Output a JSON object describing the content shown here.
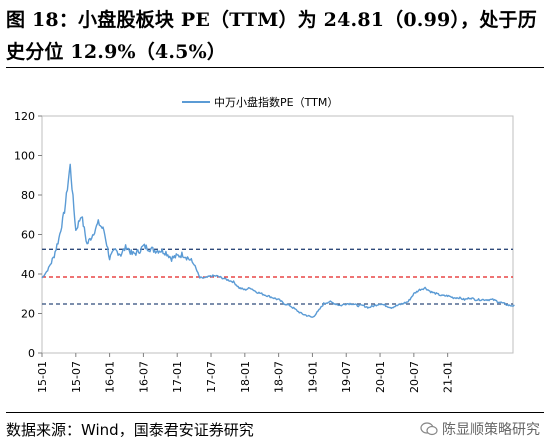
{
  "header": {
    "title": "图 18：小盘股板块 PE（TTM）为 24.81（0.99），处于历史分位 12.9%（4.5%）"
  },
  "footer": {
    "source": "数据来源：Wind，国泰君安证券研究",
    "watermark": "陈显顺策略研究"
  },
  "colors": {
    "series": "#5b9bd5",
    "mean_line": "#e32020",
    "band_lines": "#2f4a7a"
  },
  "chart_data": {
    "type": "line",
    "title": "",
    "xlabel": "",
    "ylabel": "",
    "ylim": [
      0,
      120
    ],
    "yticks": [
      0,
      20,
      40,
      60,
      80,
      100,
      120
    ],
    "x_range": [
      "2015-01",
      "2021-12"
    ],
    "xtick_labels": [
      "15-01",
      "15-07",
      "16-01",
      "16-07",
      "17-01",
      "17-07",
      "18-01",
      "18-07",
      "19-01",
      "19-07",
      "20-01",
      "20-07",
      "21-01"
    ],
    "legend": {
      "position": "top-center"
    },
    "grid": false,
    "series": [
      {
        "name": "中万小盘指数PE（TTM）",
        "x": [
          "2015-01",
          "2015-02",
          "2015-03",
          "2015-04",
          "2015-05",
          "2015-06",
          "2015-07",
          "2015-08",
          "2015-09",
          "2015-10",
          "2015-11",
          "2015-12",
          "2016-01",
          "2016-02",
          "2016-03",
          "2016-04",
          "2016-05",
          "2016-06",
          "2016-07",
          "2016-08",
          "2016-09",
          "2016-10",
          "2016-11",
          "2016-12",
          "2017-01",
          "2017-02",
          "2017-03",
          "2017-04",
          "2017-05",
          "2017-06",
          "2017-07",
          "2017-08",
          "2017-09",
          "2017-10",
          "2017-11",
          "2017-12",
          "2018-01",
          "2018-02",
          "2018-03",
          "2018-04",
          "2018-05",
          "2018-06",
          "2018-07",
          "2018-08",
          "2018-09",
          "2018-10",
          "2018-11",
          "2018-12",
          "2019-01",
          "2019-02",
          "2019-03",
          "2019-04",
          "2019-05",
          "2019-06",
          "2019-07",
          "2019-08",
          "2019-09",
          "2019-10",
          "2019-11",
          "2019-12",
          "2020-01",
          "2020-02",
          "2020-03",
          "2020-04",
          "2020-05",
          "2020-06",
          "2020-07",
          "2020-08",
          "2020-09",
          "2020-10",
          "2020-11",
          "2020-12",
          "2021-01",
          "2021-02",
          "2021-03",
          "2021-04",
          "2021-05",
          "2021-06",
          "2021-07",
          "2021-08",
          "2021-09",
          "2021-10",
          "2021-11",
          "2021-12"
        ],
        "values": [
          38,
          42,
          48,
          58,
          72,
          95,
          62,
          70,
          55,
          60,
          66,
          62,
          48,
          52,
          50,
          54,
          50,
          51,
          54,
          53,
          52,
          52,
          51,
          48,
          49,
          50,
          48,
          45,
          38,
          38,
          39,
          39,
          38,
          37,
          36,
          33,
          32,
          33,
          31,
          30,
          29,
          28,
          27,
          25,
          24,
          22,
          20,
          19,
          18,
          21,
          25,
          26,
          25,
          24,
          25,
          25,
          24,
          24,
          23,
          24,
          25,
          24,
          23,
          24,
          25,
          26,
          30,
          32,
          33,
          31,
          30,
          29,
          29,
          28,
          28,
          27,
          28,
          27,
          27,
          27,
          27,
          26,
          25,
          24
        ]
      }
    ],
    "reference_lines": [
      {
        "value": 52.5,
        "style": "dashed"
      },
      {
        "value": 38.5,
        "style": "dashed"
      },
      {
        "value": 24.8,
        "style": "dashed"
      }
    ]
  }
}
